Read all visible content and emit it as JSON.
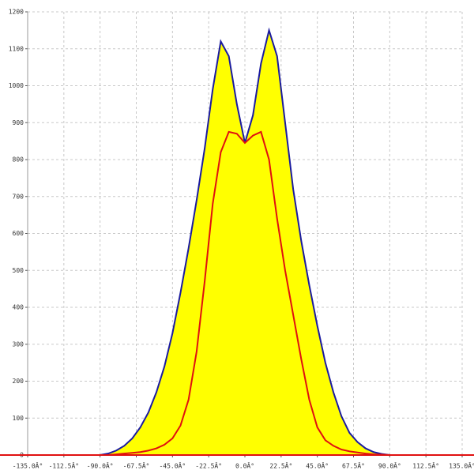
{
  "chart_data": {
    "type": "area",
    "x": [
      -90,
      -85,
      -80,
      -75,
      -70,
      -65,
      -60,
      -55,
      -50,
      -45,
      -40,
      -35,
      -30,
      -25,
      -20,
      -15,
      -10,
      -5,
      0,
      5,
      10,
      15,
      20,
      25,
      30,
      35,
      40,
      45,
      50,
      55,
      60,
      65,
      70,
      75,
      80,
      85,
      90
    ],
    "series": [
      {
        "color": "#1a1aa0",
        "fill": "#ffff00",
        "values": [
          0,
          4,
          12,
          25,
          45,
          75,
          115,
          170,
          240,
          330,
          440,
          560,
          690,
          830,
          990,
          1120,
          1080,
          950,
          845,
          920,
          1060,
          1150,
          1080,
          900,
          720,
          580,
          460,
          350,
          250,
          170,
          105,
          60,
          35,
          18,
          8,
          3,
          0
        ]
      },
      {
        "color": "#e01010",
        "values": [
          0,
          0,
          2,
          4,
          6,
          8,
          12,
          18,
          28,
          45,
          80,
          150,
          280,
          470,
          680,
          820,
          875,
          870,
          845,
          865,
          875,
          800,
          640,
          500,
          380,
          260,
          150,
          75,
          40,
          25,
          15,
          10,
          7,
          4,
          2,
          1,
          0
        ]
      }
    ],
    "xlim": [
      -135,
      135
    ],
    "ylim": [
      0,
      1200
    ],
    "xticks": [
      {
        "value": -135,
        "label": "-135.0Â°"
      },
      {
        "value": -112.5,
        "label": "-112.5Â°"
      },
      {
        "value": -90,
        "label": "-90.0Â°"
      },
      {
        "value": -67.5,
        "label": "-67.5Â°"
      },
      {
        "value": -45,
        "label": "-45.0Â°"
      },
      {
        "value": -22.5,
        "label": "-22.5Â°"
      },
      {
        "value": 0,
        "label": "0.0Â°"
      },
      {
        "value": 22.5,
        "label": "22.5Â°"
      },
      {
        "value": 45,
        "label": "45.0Â°"
      },
      {
        "value": 67.5,
        "label": "67.5Â°"
      },
      {
        "value": 90,
        "label": "90.0Â°"
      },
      {
        "value": 112.5,
        "label": "112.5Â°"
      },
      {
        "value": 135,
        "label": "135.0Â°"
      }
    ],
    "yticks": [
      0,
      100,
      200,
      300,
      400,
      500,
      600,
      700,
      800,
      900,
      1000,
      1100,
      1200
    ],
    "grid": true,
    "axis_color": "#e01010"
  }
}
